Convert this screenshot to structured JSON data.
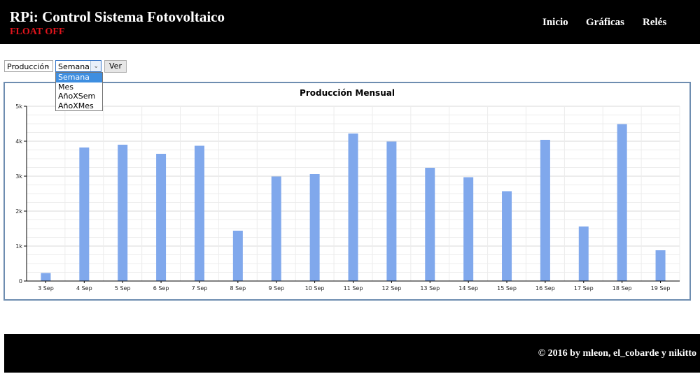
{
  "header": {
    "title": "RPi: Control Sistema Fotovoltaico",
    "status": "FLOAT OFF",
    "nav": [
      "Inicio",
      "Gráficas",
      "Relés"
    ]
  },
  "controls": {
    "variable_select": "Producción",
    "period_select": "Semana",
    "period_options": [
      "Semana",
      "Mes",
      "AñoXSem",
      "AñoXMes"
    ],
    "button": "Ver"
  },
  "chart_data": {
    "type": "bar",
    "title": "Producción Mensual",
    "categories": [
      "3 Sep",
      "4 Sep",
      "5 Sep",
      "6 Sep",
      "7 Sep",
      "8 Sep",
      "9 Sep",
      "10 Sep",
      "11 Sep",
      "12 Sep",
      "13 Sep",
      "14 Sep",
      "15 Sep",
      "16 Sep",
      "17 Sep",
      "18 Sep",
      "19 Sep"
    ],
    "values": [
      230,
      3820,
      3900,
      3640,
      3870,
      1440,
      2990,
      3060,
      4220,
      3990,
      3240,
      2970,
      2570,
      4040,
      1560,
      4490,
      880
    ],
    "ylim": [
      0,
      5000
    ],
    "yticks": [
      "0",
      "1k",
      "2k",
      "3k",
      "4k",
      "5k"
    ],
    "color": "#80a8ec"
  },
  "footer": {
    "text": "© 2016 by mleon, el_cobarde y nikitto"
  }
}
